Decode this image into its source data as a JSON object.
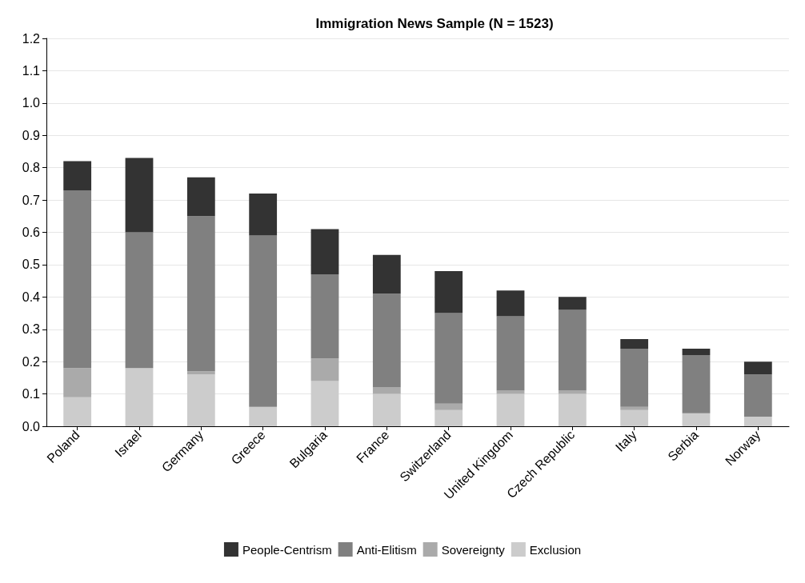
{
  "chart_data": {
    "type": "bar",
    "title": "Immigration News Sample (N = 1523)",
    "stacked": true,
    "grid": "y",
    "legend": "bottom",
    "categories": [
      "Poland",
      "Israel",
      "Germany",
      "Greece",
      "Bulgaria",
      "France",
      "Switzerland",
      "United Kingdom",
      "Czech Republic",
      "Italy",
      "Serbia",
      "Norway"
    ],
    "series": [
      {
        "name": "Exclusion",
        "color": "#cccccc",
        "values": [
          0.09,
          0.18,
          0.16,
          0.06,
          0.14,
          0.1,
          0.05,
          0.1,
          0.1,
          0.05,
          0.04,
          0.03
        ]
      },
      {
        "name": "Sovereignty",
        "color": "#aaaaaa",
        "values": [
          0.09,
          0,
          0.01,
          0,
          0.07,
          0.02,
          0.02,
          0.01,
          0.01,
          0.01,
          0,
          0
        ]
      },
      {
        "name": "Anti-Elitism",
        "color": "#808080",
        "values": [
          0.55,
          0.42,
          0.48,
          0.53,
          0.26,
          0.29,
          0.28,
          0.23,
          0.25,
          0.18,
          0.18,
          0.13
        ]
      },
      {
        "name": "People-Centrism",
        "color": "#333333",
        "values": [
          0.09,
          0.23,
          0.12,
          0.13,
          0.14,
          0.12,
          0.13,
          0.08,
          0.04,
          0.03,
          0.02,
          0.04
        ]
      }
    ],
    "ylim": [
      0,
      1.2
    ],
    "yticks": [
      {
        "value": 0,
        "label": "0.0"
      },
      0.1,
      0.2,
      0.3,
      0.4,
      0.5,
      0.6,
      0.7,
      0.8,
      0.9,
      {
        "value": 1,
        "label": "1.0"
      },
      1.1,
      1.2
    ]
  }
}
